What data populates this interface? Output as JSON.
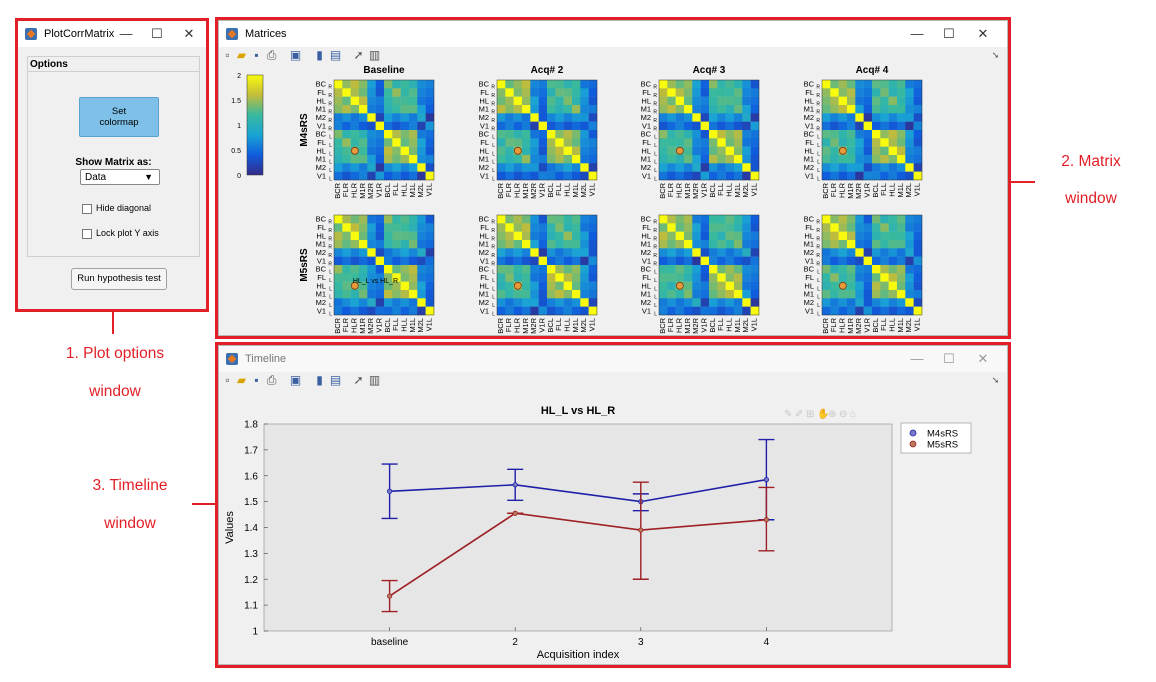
{
  "plot_options_window": {
    "title": "PlotCorrMatrix",
    "panel_title": "Options",
    "set_colormap_label": "Set\ncolormap",
    "show_matrix_label": "Show Matrix as:",
    "show_matrix_value": "Data",
    "hide_diagonal_label": "Hide diagonal",
    "lock_y_label": "Lock plot Y axis",
    "run_test_label": "Run hypothesis test",
    "controls": {
      "minimize": "—",
      "maximize": "☐",
      "close": "✕"
    }
  },
  "matrix_window": {
    "title": "Matrices",
    "colorbar_ticks": [
      "2",
      "1.5",
      "1",
      "0.5",
      "0"
    ],
    "row_labels": [
      "M4sRS",
      "M5sRS"
    ],
    "column_titles": [
      "Baseline",
      "Acq# 2",
      "Acq# 3",
      "Acq# 4"
    ],
    "region_labels": [
      "BC",
      "FL",
      "HL",
      "M1",
      "M2",
      "V1",
      "BC",
      "FL",
      "HL",
      "M1",
      "M2",
      "V1"
    ],
    "region_subscripts": [
      "R",
      "R",
      "R",
      "R",
      "R",
      "R",
      "L",
      "L",
      "L",
      "L",
      "L",
      "L"
    ],
    "selection_label": "HL_L vs HL_R"
  },
  "timeline_window": {
    "title": "Timeline"
  },
  "annotations": {
    "plot_options": [
      "1. Plot options",
      "window"
    ],
    "matrix": [
      "2. Matrix",
      "window"
    ],
    "timeline": [
      "3. Timeline",
      "window"
    ]
  },
  "chart_data": {
    "type": "line",
    "title": "HL_L vs HL_R",
    "xlabel": "Acquisition index",
    "ylabel": "Values",
    "categories": [
      "baseline",
      "2",
      "3",
      "4"
    ],
    "ylim": [
      1,
      1.8
    ],
    "yticks": [
      "1",
      "1.1",
      "1.2",
      "1.3",
      "1.4",
      "1.5",
      "1.6",
      "1.7",
      "1.8"
    ],
    "legend_position": "top-right",
    "series": [
      {
        "name": "M4sRS",
        "color": "#1f1fa8",
        "marker_color": "#7a7ac8",
        "values": [
          1.54,
          1.565,
          1.5,
          1.585
        ],
        "lower": [
          1.435,
          1.505,
          1.465,
          1.43
        ],
        "upper": [
          1.645,
          1.625,
          1.53,
          1.74
        ]
      },
      {
        "name": "M5sRS",
        "color": "#9e1f24",
        "marker_color": "#b77a5c",
        "values": [
          1.135,
          1.455,
          1.39,
          1.43
        ],
        "lower": [
          1.075,
          1.455,
          1.2,
          1.31
        ],
        "upper": [
          1.195,
          1.455,
          1.575,
          1.555
        ]
      }
    ]
  },
  "colors": {
    "annotation_red": "#e21f26",
    "button_blue": "#7ec0e8"
  }
}
